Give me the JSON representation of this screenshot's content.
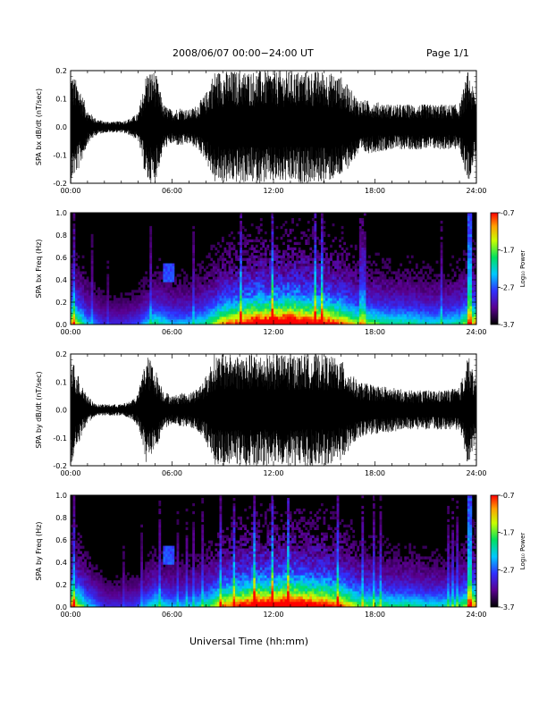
{
  "header": {
    "title": "2008/06/07  00:00−24:00 UT",
    "page": "Page 1/1"
  },
  "footer": {
    "xlabel": "Universal Time (hh:mm)"
  },
  "colors": {
    "trace": "#000000",
    "background": "#ffffff"
  },
  "chart_data": [
    {
      "type": "line",
      "name": "bx waveform",
      "ylabel": "SPA bx dB/dt (nT/sec)",
      "xlim": [
        "00:00",
        "24:00"
      ],
      "x_ticks": [
        "00:00",
        "06:00",
        "12:00",
        "18:00",
        "24:00"
      ],
      "ylim": [
        -0.2,
        0.2
      ],
      "y_ticks": [
        "-0.2",
        "-0.1",
        "0.0",
        "0.1",
        "0.2"
      ],
      "envelope": {
        "hours": [
          0,
          0.5,
          1.0,
          1.5,
          2.0,
          2.5,
          3.0,
          3.5,
          4.0,
          4.5,
          5.0,
          5.5,
          6.0,
          6.5,
          7.0,
          7.5,
          8.0,
          8.5,
          9.0,
          10.0,
          11.0,
          12.0,
          13.0,
          14.0,
          15.0,
          16.0,
          16.5,
          17.0,
          18.0,
          19.0,
          20.0,
          21.0,
          22.0,
          23.0,
          23.5,
          24.0
        ],
        "amplitude": [
          0.2,
          0.15,
          0.06,
          0.03,
          0.02,
          0.02,
          0.02,
          0.03,
          0.05,
          0.2,
          0.2,
          0.08,
          0.06,
          0.07,
          0.06,
          0.08,
          0.12,
          0.2,
          0.2,
          0.2,
          0.2,
          0.2,
          0.2,
          0.2,
          0.2,
          0.18,
          0.14,
          0.1,
          0.09,
          0.08,
          0.08,
          0.08,
          0.08,
          0.08,
          0.2,
          0.1
        ]
      }
    },
    {
      "type": "heatmap",
      "name": "bx spectrogram",
      "ylabel": "SPA bx Freq (Hz)",
      "xlim": [
        "00:00",
        "24:00"
      ],
      "x_ticks": [
        "00:00",
        "06:00",
        "12:00",
        "18:00",
        "24:00"
      ],
      "ylim": [
        0.0,
        1.0
      ],
      "y_ticks": [
        "0.0",
        "0.2",
        "0.4",
        "0.6",
        "0.8",
        "1.0"
      ],
      "colorbar": {
        "label": "Log₁₀ Power",
        "range": [
          -3.7,
          -0.7
        ],
        "ticks": [
          "-0.7",
          "-1.7",
          "-2.7",
          "-3.7"
        ]
      },
      "activity": {
        "hours": [
          0,
          1,
          2,
          3,
          4,
          5,
          6,
          7,
          8,
          9,
          10,
          11,
          12,
          13,
          14,
          15,
          16,
          17,
          18,
          19,
          20,
          21,
          22,
          23,
          24
        ],
        "level": [
          0.7,
          0.35,
          0.2,
          0.2,
          0.25,
          0.45,
          0.35,
          0.35,
          0.45,
          0.7,
          0.8,
          0.95,
          0.95,
          1.0,
          0.9,
          0.85,
          0.75,
          0.55,
          0.5,
          0.45,
          0.45,
          0.4,
          0.4,
          0.45,
          0.7
        ]
      }
    },
    {
      "type": "line",
      "name": "by waveform",
      "ylabel": "SPA by dB/dt (nT/sec)",
      "xlim": [
        "00:00",
        "24:00"
      ],
      "x_ticks": [
        "00:00",
        "06:00",
        "12:00",
        "18:00",
        "24:00"
      ],
      "ylim": [
        -0.2,
        0.2
      ],
      "y_ticks": [
        "-0.2",
        "-0.1",
        "0.0",
        "0.1",
        "0.2"
      ],
      "envelope": {
        "hours": [
          0,
          0.5,
          1.0,
          1.5,
          2.0,
          2.5,
          3.0,
          3.5,
          4.0,
          4.5,
          5.0,
          5.5,
          6.0,
          6.5,
          7.0,
          7.5,
          8.0,
          8.5,
          9.0,
          10.0,
          11.0,
          12.0,
          13.0,
          14.0,
          15.0,
          16.0,
          16.5,
          17.0,
          18.0,
          19.0,
          20.0,
          21.0,
          22.0,
          23.0,
          23.5,
          24.0
        ],
        "amplitude": [
          0.2,
          0.12,
          0.05,
          0.02,
          0.02,
          0.02,
          0.02,
          0.03,
          0.06,
          0.2,
          0.15,
          0.07,
          0.05,
          0.06,
          0.06,
          0.08,
          0.12,
          0.2,
          0.2,
          0.2,
          0.2,
          0.2,
          0.2,
          0.2,
          0.2,
          0.18,
          0.14,
          0.1,
          0.09,
          0.08,
          0.07,
          0.07,
          0.07,
          0.08,
          0.2,
          0.1
        ]
      }
    },
    {
      "type": "heatmap",
      "name": "by spectrogram",
      "ylabel": "SPA by Freq (Hz)",
      "xlim": [
        "00:00",
        "24:00"
      ],
      "x_ticks": [
        "00:00",
        "06:00",
        "12:00",
        "18:00",
        "24:00"
      ],
      "ylim": [
        0.0,
        1.0
      ],
      "y_ticks": [
        "0.0",
        "0.2",
        "0.4",
        "0.6",
        "0.8",
        "1.0"
      ],
      "colorbar": {
        "label": "Log₁₀ Power",
        "range": [
          -3.7,
          -0.7
        ],
        "ticks": [
          "-0.7",
          "-1.7",
          "-2.7",
          "-3.7"
        ]
      },
      "activity": {
        "hours": [
          0,
          1,
          2,
          3,
          4,
          5,
          6,
          7,
          8,
          9,
          10,
          11,
          12,
          13,
          14,
          15,
          16,
          17,
          18,
          19,
          20,
          21,
          22,
          23,
          24
        ],
        "level": [
          0.75,
          0.4,
          0.2,
          0.2,
          0.25,
          0.45,
          0.35,
          0.35,
          0.45,
          0.7,
          0.8,
          0.95,
          0.95,
          1.0,
          0.9,
          0.85,
          0.75,
          0.55,
          0.5,
          0.45,
          0.45,
          0.4,
          0.4,
          0.45,
          0.75
        ]
      }
    }
  ]
}
